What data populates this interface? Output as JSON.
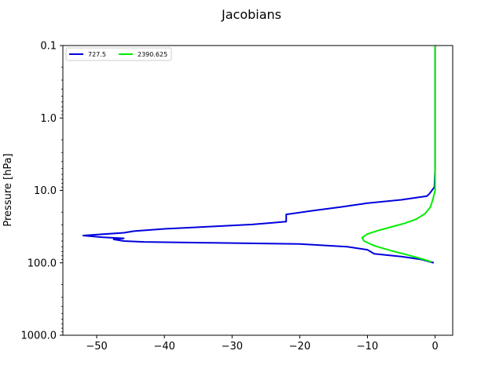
{
  "chart_data": {
    "type": "line",
    "title": "Jacobians",
    "xlabel": "",
    "ylabel": "Pressure [hPa]",
    "xlim": [
      -55,
      2.6
    ],
    "ylim": [
      1000,
      0.1
    ],
    "yscale": "log",
    "y_inverted": true,
    "x_ticks": [
      -50,
      -40,
      -30,
      -20,
      -10,
      0
    ],
    "x_tick_labels": [
      "−50",
      "−40",
      "−30",
      "−20",
      "−10",
      "0"
    ],
    "y_ticks": [
      0.1,
      1,
      10,
      100,
      1000
    ],
    "y_tick_labels": [
      "0.1",
      "1.0",
      "10.0",
      "100.0",
      "1000.0"
    ],
    "grid": false,
    "legend_position": "top-left",
    "series": [
      {
        "name": "727.5",
        "color": "#0000dd",
        "points": [
          [
            0,
            0.1
          ],
          [
            0,
            5
          ],
          [
            -0.1,
            9
          ],
          [
            -0.8,
            11
          ],
          [
            -1.2,
            12
          ],
          [
            -5,
            13.5
          ],
          [
            -10,
            15
          ],
          [
            -14,
            17
          ],
          [
            -18,
            19
          ],
          [
            -22,
            21.5
          ],
          [
            -22,
            24
          ],
          [
            -22,
            27
          ],
          [
            -24,
            28
          ],
          [
            -27,
            29.5
          ],
          [
            -33,
            31.5
          ],
          [
            -40,
            34
          ],
          [
            -44.5,
            36.5
          ],
          [
            -46,
            38.5
          ],
          [
            -52,
            42
          ],
          [
            -49,
            44.5
          ],
          [
            -46,
            46
          ],
          [
            -47.5,
            47.5
          ],
          [
            -46,
            50
          ],
          [
            -43,
            51.5
          ],
          [
            -33,
            53
          ],
          [
            -20,
            55
          ],
          [
            -13,
            60
          ],
          [
            -10,
            66
          ],
          [
            -9,
            75
          ],
          [
            -5,
            82
          ],
          [
            -2,
            90
          ],
          [
            -0.2,
            100
          ]
        ]
      },
      {
        "name": "2390.625",
        "color": "#00ee00",
        "points": [
          [
            0,
            0.1
          ],
          [
            0,
            5
          ],
          [
            0,
            10
          ],
          [
            -0.3,
            13
          ],
          [
            -0.7,
            17
          ],
          [
            -1.5,
            21
          ],
          [
            -2.8,
            25
          ],
          [
            -4.5,
            28.5
          ],
          [
            -6.5,
            32
          ],
          [
            -8.5,
            36
          ],
          [
            -10,
            40
          ],
          [
            -10.8,
            45
          ],
          [
            -10.5,
            50
          ],
          [
            -9,
            58
          ],
          [
            -6.5,
            68
          ],
          [
            -4,
            78
          ],
          [
            -2,
            88
          ],
          [
            -0.5,
            97
          ]
        ]
      }
    ]
  }
}
